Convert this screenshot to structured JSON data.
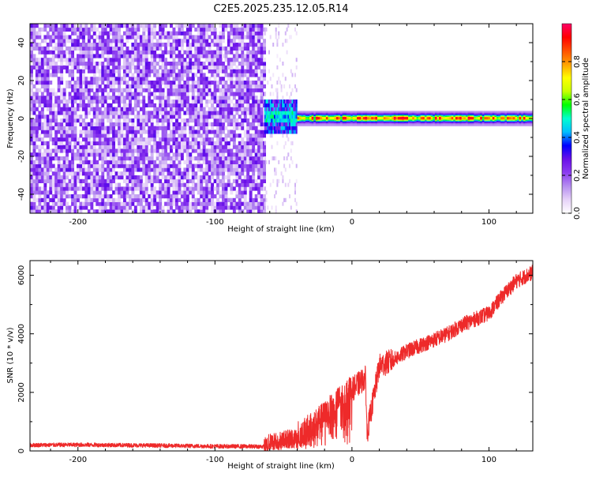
{
  "page": {
    "title": "C2E5.2025.235.12.05.R14"
  },
  "chart_data": [
    {
      "type": "heatmap",
      "title": "C2E5.2025.235.12.05.R14",
      "xlabel": "Height of straight line (km)",
      "ylabel": "Frequency (Hz)",
      "xlim": [
        -235,
        132
      ],
      "ylim": [
        -50,
        50
      ],
      "xticks": [
        -200,
        -100,
        0,
        100
      ],
      "yticks": [
        -40,
        -20,
        0,
        20,
        40
      ],
      "colorbar": {
        "label": "Normalized spectral amplitude",
        "range": [
          0,
          1
        ],
        "ticks": [
          0.0,
          0.2,
          0.4,
          0.6,
          0.8
        ],
        "colormap": [
          "#ffffff",
          "#e6d2f8",
          "#b68ef0",
          "#8c3cf0",
          "#6a10e8",
          "#0000ff",
          "#00bfff",
          "#00ffd0",
          "#00ff00",
          "#c8ff00",
          "#ffff00",
          "#ffa000",
          "#ff5000",
          "#ff0000",
          "#ff0066"
        ]
      },
      "regions": [
        {
          "name": "noise",
          "x": [
            -235,
            -64
          ],
          "freq_range": [
            -50,
            50
          ],
          "amplitude": [
            0.05,
            0.3
          ]
        },
        {
          "name": "transition",
          "x": [
            -64,
            -40
          ],
          "freq_range": [
            -10,
            10
          ],
          "amplitude": [
            0.2,
            0.5
          ]
        },
        {
          "name": "tone",
          "x": [
            -40,
            132
          ],
          "center_freq": 0,
          "halfwidth_hz": 4,
          "peak_amplitude": [
            0.6,
            1.0
          ]
        }
      ]
    },
    {
      "type": "line",
      "xlabel": "Height of straight line (km)",
      "ylabel": "SNR (10 * v/v)",
      "xlim": [
        -235,
        132
      ],
      "ylim": [
        0,
        6500
      ],
      "xticks": [
        -200,
        -100,
        0,
        100
      ],
      "yticks": [
        0,
        2000,
        4000,
        6000
      ],
      "color": "#ee2a2a",
      "series": [
        {
          "x": [
            -235,
            -200,
            -150,
            -100,
            -80,
            -64,
            -60,
            -50,
            -40,
            -30,
            -20,
            -10,
            0,
            10,
            11,
            20,
            30,
            40,
            50,
            60,
            70,
            80,
            90,
            100,
            110,
            120,
            132
          ],
          "values": [
            200,
            210,
            190,
            160,
            155,
            150,
            300,
            400,
            500,
            800,
            1200,
            1700,
            2100,
            2500,
            600,
            2900,
            3100,
            3400,
            3600,
            3800,
            4000,
            4300,
            4500,
            4700,
            5300,
            5800,
            6100
          ]
        }
      ]
    }
  ]
}
